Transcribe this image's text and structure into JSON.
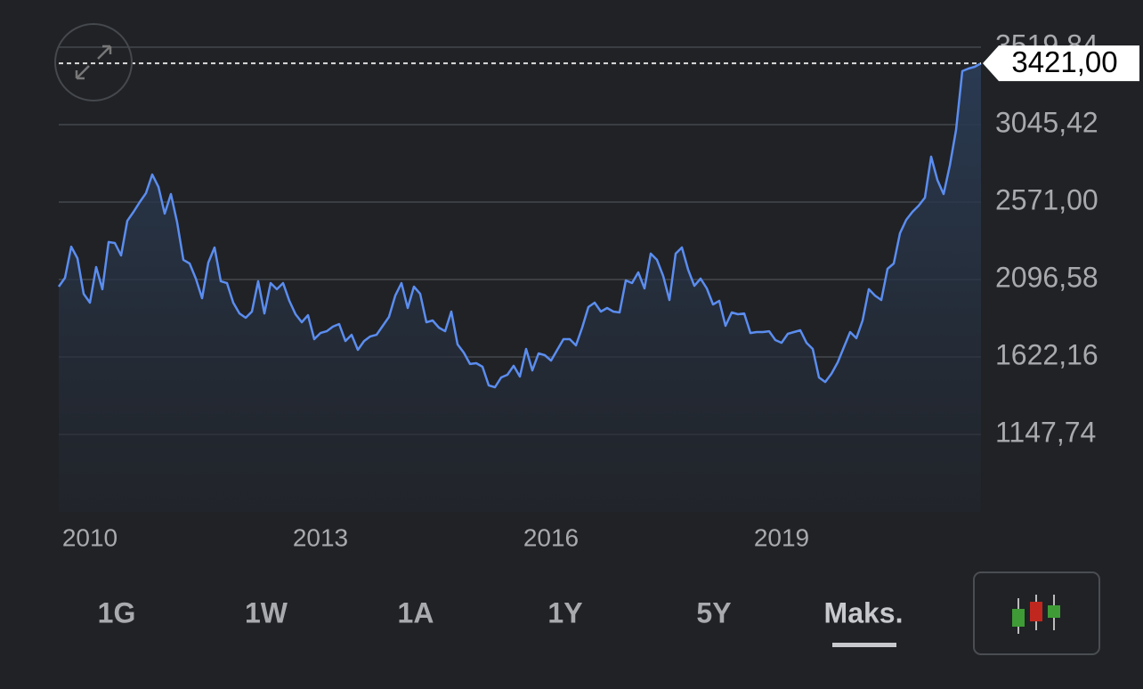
{
  "chart_data": {
    "type": "line",
    "color": "#5b8def",
    "grid": true,
    "categories": [
      null,
      null,
      null,
      null,
      null,
      "2010",
      null,
      null,
      null,
      null,
      null,
      null,
      null,
      null,
      null,
      null,
      null,
      null,
      null,
      null,
      null,
      null,
      null,
      null,
      null,
      null,
      null,
      null,
      null,
      null,
      null,
      null,
      null,
      null,
      null,
      null,
      null,
      null,
      null,
      null,
      null,
      null,
      "2013",
      null,
      null,
      null,
      null,
      null,
      null,
      null,
      null,
      null,
      null,
      null,
      null,
      null,
      null,
      null,
      null,
      null,
      null,
      null,
      null,
      null,
      null,
      null,
      null,
      null,
      null,
      null,
      null,
      null,
      null,
      null,
      null,
      null,
      null,
      null,
      null,
      "2016",
      null,
      null,
      null,
      null,
      null,
      null,
      null,
      null,
      null,
      null,
      null,
      null,
      null,
      null,
      null,
      null,
      null,
      null,
      null,
      null,
      null,
      null,
      null,
      null,
      null,
      null,
      null,
      null,
      null,
      null,
      null,
      null,
      null,
      null,
      null,
      null,
      "2019",
      null,
      null,
      null,
      null,
      null,
      null,
      null,
      null,
      null,
      null,
      null,
      null,
      null,
      null,
      null,
      null,
      null,
      null,
      null,
      null,
      null,
      null,
      null,
      null,
      null,
      null,
      null,
      null,
      null,
      null,
      null,
      null
    ],
    "values": [
      2053,
      2107,
      2298,
      2227,
      2009,
      1955,
      2173,
      2037,
      2326,
      2320,
      2244,
      2456,
      2511,
      2571,
      2626,
      2740,
      2664,
      2500,
      2620,
      2446,
      2217,
      2195,
      2102,
      1982,
      2200,
      2293,
      2086,
      2075,
      1955,
      1889,
      1862,
      1900,
      2086,
      1889,
      2075,
      2037,
      2075,
      1966,
      1884,
      1835,
      1878,
      1731,
      1769,
      1780,
      1808,
      1824,
      1720,
      1758,
      1666,
      1720,
      1748,
      1758,
      1813,
      1868,
      1998,
      2075,
      1922,
      2053,
      2009,
      1835,
      1846,
      1802,
      1780,
      1900,
      1699,
      1649,
      1579,
      1584,
      1562,
      1448,
      1437,
      1497,
      1513,
      1568,
      1502,
      1671,
      1540,
      1644,
      1633,
      1600,
      1666,
      1731,
      1731,
      1693,
      1802,
      1928,
      1955,
      1900,
      1922,
      1900,
      1895,
      2091,
      2075,
      2140,
      2042,
      2255,
      2217,
      2118,
      1971,
      2255,
      2293,
      2157,
      2058,
      2102,
      2042,
      1944,
      1966,
      1813,
      1895,
      1884,
      1889,
      1769,
      1775,
      1775,
      1780,
      1726,
      1709,
      1764,
      1775,
      1786,
      1709,
      1671,
      1497,
      1469,
      1519,
      1589,
      1682,
      1775,
      1737,
      1846,
      2037,
      1998,
      1971,
      2162,
      2195,
      2380,
      2462,
      2511,
      2549,
      2598,
      2849,
      2707,
      2620,
      2795,
      3013,
      3373,
      3389,
      3400,
      3421
    ],
    "ylim": [
      673.32,
      3519.84
    ],
    "yticks": [
      {
        "value": 1147.74,
        "label": "1147,74"
      },
      {
        "value": 1622.16,
        "label": "1622,16"
      },
      {
        "value": 2096.58,
        "label": "2096,58"
      },
      {
        "value": 2571.0,
        "label": "2571,00"
      },
      {
        "value": 3045.42,
        "label": "3045,42"
      },
      {
        "value": 3519.84,
        "label": "3519,84"
      }
    ],
    "last_price": {
      "value": 3421,
      "label": "3421,00"
    }
  },
  "ui": {
    "range_buttons": [
      "1G",
      "1W",
      "1A",
      "1Y",
      "5Y",
      "Maks."
    ],
    "selected_range": 5
  }
}
